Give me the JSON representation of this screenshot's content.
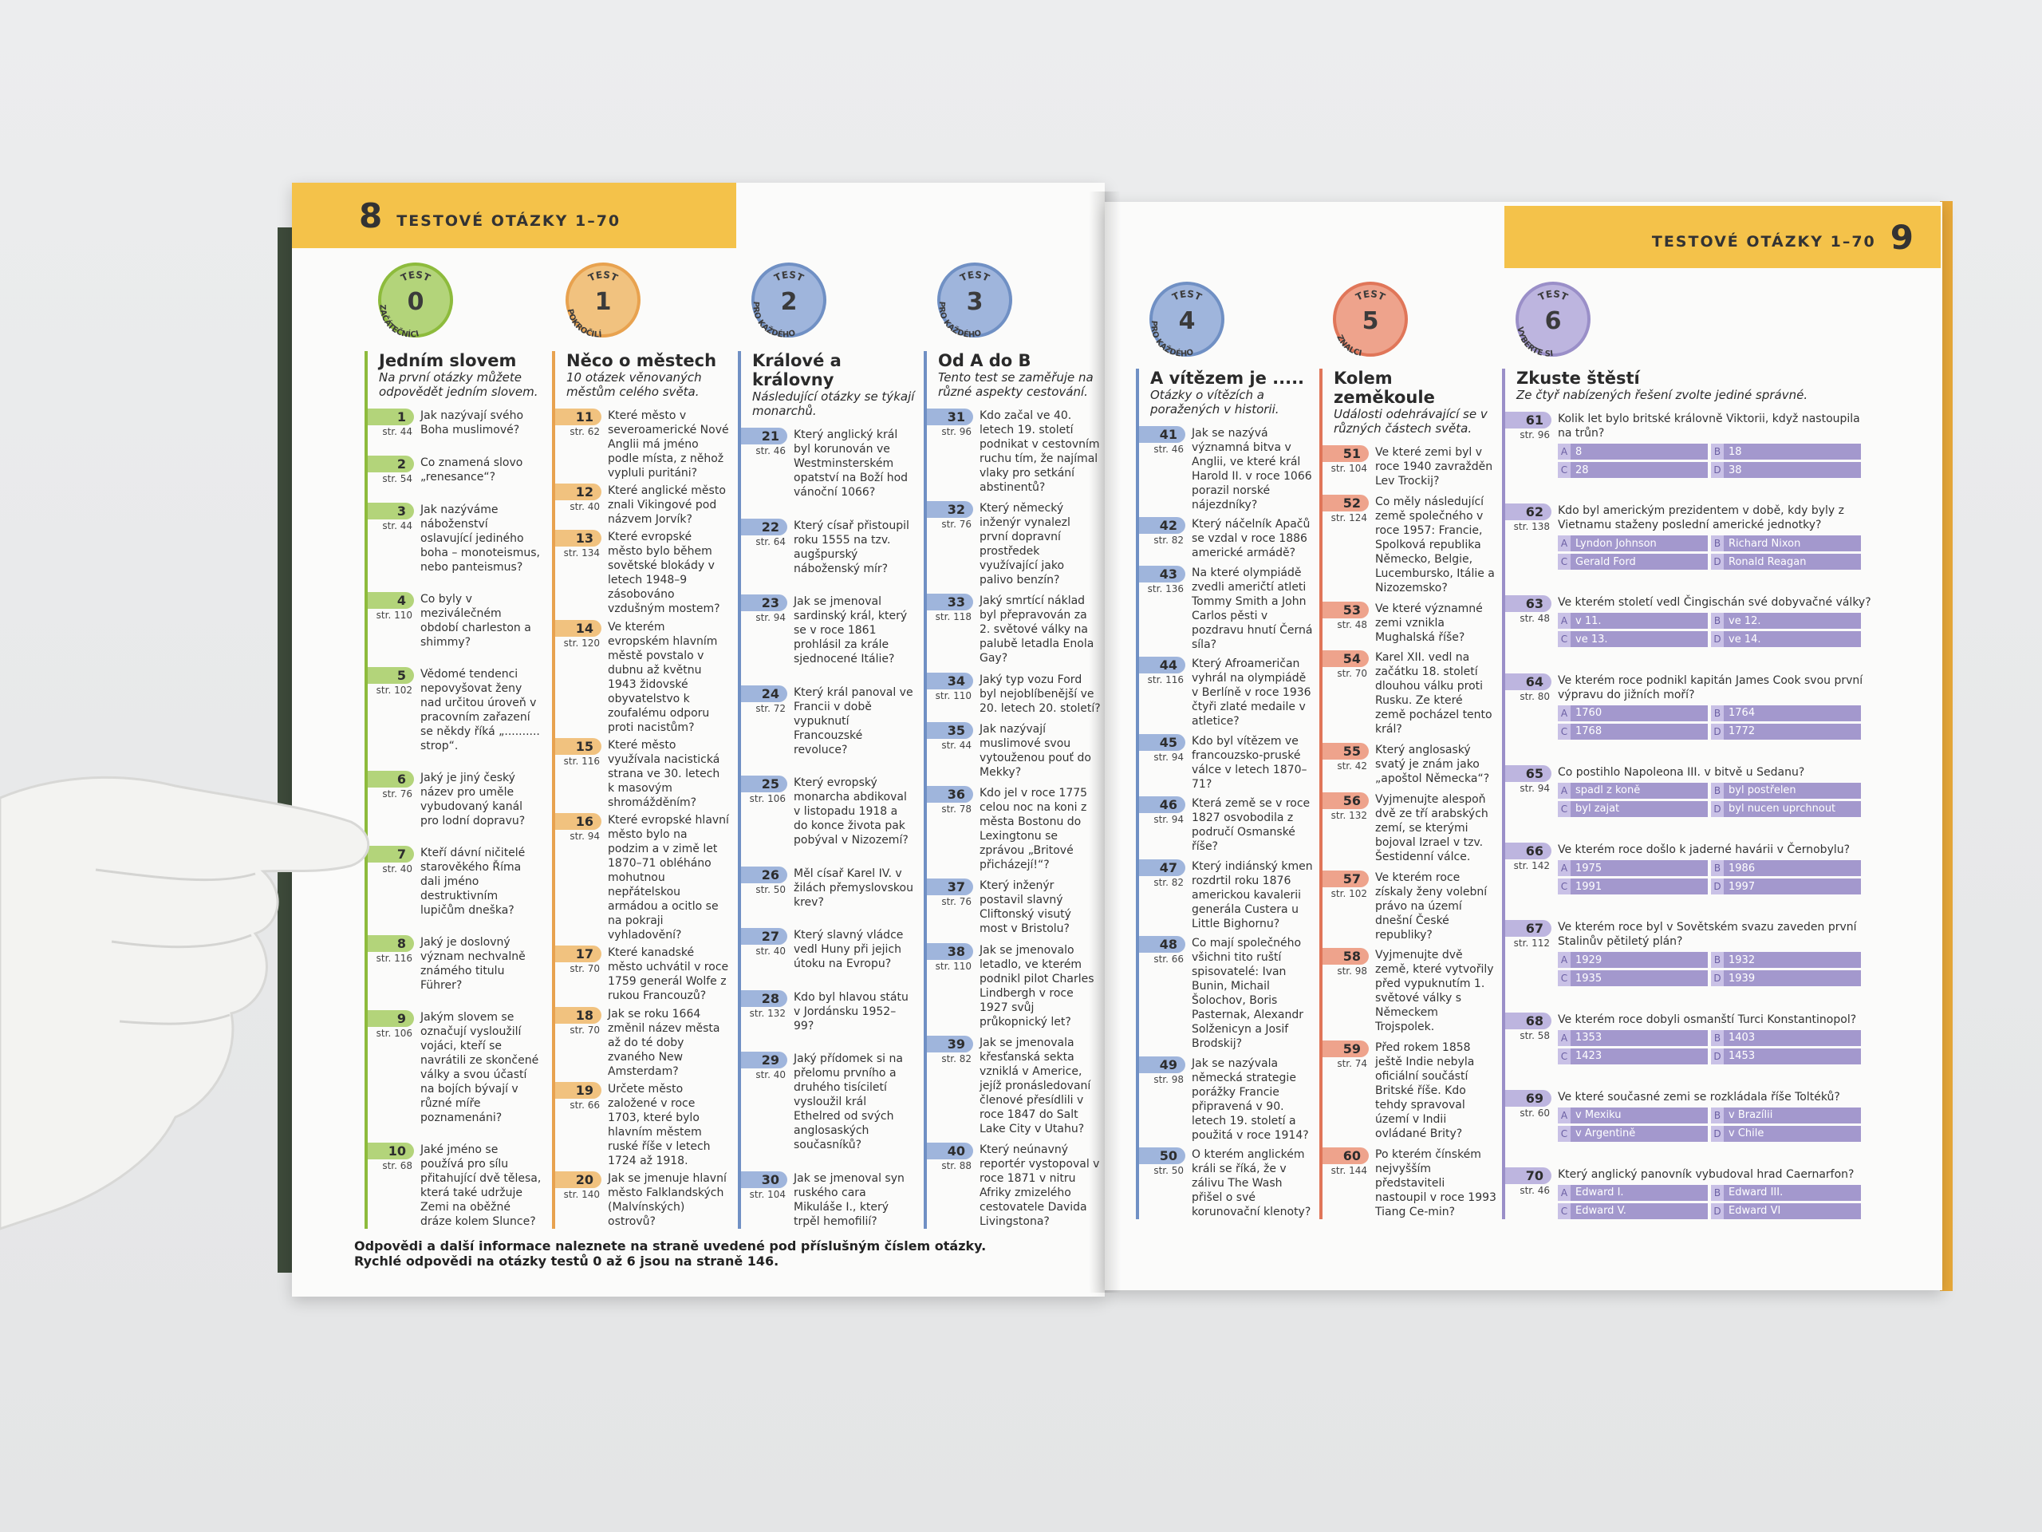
{
  "left_page": {
    "page_number": "8",
    "header": "TESTOVÉ OTÁZKY 1–70",
    "tests": [
      {
        "badge": "TEST",
        "number": "0",
        "level": "ZAČÁTEČNÍCI",
        "title": "Jedním slovem",
        "subtitle": "Na první otázky můžete odpovědět jedním slovem.",
        "questions": [
          {
            "number": "1",
            "page": "str. 44",
            "text": "Jak nazývají svého Boha muslimové?"
          },
          {
            "number": "2",
            "page": "str. 54",
            "text": "Co znamená slovo „renesance“?"
          },
          {
            "number": "3",
            "page": "str. 44",
            "text": "Jak nazýváme náboženství oslavující jediného boha – monoteismus, nebo panteismus?"
          },
          {
            "number": "4",
            "page": "str. 110",
            "text": "Co byly v meziválečném období charleston a shimmy?"
          },
          {
            "number": "5",
            "page": "str. 102",
            "text": "Vědomé tendenci nepovyšovat ženy nad určitou úroveň v pracovním zařazení se někdy říká „.......... strop“."
          },
          {
            "number": "6",
            "page": "str. 76",
            "text": "Jaký je jiný český název pro uměle vybudovaný kanál pro lodní dopravu?"
          },
          {
            "number": "7",
            "page": "str. 40",
            "text": "Kteří dávní ničitelé starověkého Říma dali jméno destruktivním lupičům dneška?"
          },
          {
            "number": "8",
            "page": "str. 116",
            "text": "Jaký je doslovný význam nechvalně známého titulu Führer?"
          },
          {
            "number": "9",
            "page": "str. 106",
            "text": "Jakým slovem se označují vysloužilí vojáci, kteří se navrátili ze skončené války a svou účastí na bojích bývají v různé míře poznamenáni?"
          },
          {
            "number": "10",
            "page": "str. 68",
            "text": "Jaké jméno se používá pro sílu přitahující dvě tělesa, která také udržuje Zemi na oběžné dráze kolem Slunce?"
          }
        ]
      },
      {
        "badge": "TEST",
        "number": "1",
        "level": "POKROČILÍ",
        "title": "Něco o městech",
        "subtitle": "10 otázek věnovaných městům celého světa.",
        "questions": [
          {
            "number": "11",
            "page": "str. 62",
            "text": "Které město v severoamerické Nové Anglii má jméno podle místa, z něhož vypluli puritáni?"
          },
          {
            "number": "12",
            "page": "str. 40",
            "text": "Které anglické město znali Vikingové pod názvem Jorvík?"
          },
          {
            "number": "13",
            "page": "str. 134",
            "text": "Které evropské město bylo během sovětské blokády v letech 1948–9 zásobováno vzdušným mostem?"
          },
          {
            "number": "14",
            "page": "str. 120",
            "text": "Ve kterém evropském hlavním městě povstalo v dubnu až květnu 1943 židovské obyvatelstvo k zoufalému odporu proti nacistům?"
          },
          {
            "number": "15",
            "page": "str. 116",
            "text": "Které město využívala nacistická strana ve 30. letech k masovým shromážděním?"
          },
          {
            "number": "16",
            "page": "str. 94",
            "text": "Které evropské hlavní město bylo na podzim a v zimě let 1870–71 obléháno mohutnou nepřátelskou armádou a ocitlo se na pokraji vyhladovění?"
          },
          {
            "number": "17",
            "page": "str. 70",
            "text": "Které kanadské město uchvátil v roce 1759 generál Wolfe z rukou Francouzů?"
          },
          {
            "number": "18",
            "page": "str. 70",
            "text": "Jak se roku 1664 změnil název města až do té doby zvaného New Amsterdam?"
          },
          {
            "number": "19",
            "page": "str. 66",
            "text": "Určete město založené v roce 1703, které bylo hlavním městem ruské říše v letech 1724 až 1918."
          },
          {
            "number": "20",
            "page": "str. 140",
            "text": "Jak se jmenuje hlavní město Falklandských (Malvínských) ostrovů?"
          }
        ]
      },
      {
        "badge": "TEST",
        "number": "2",
        "level": "PRO KAŽDÉHO",
        "title": "Králové a královny",
        "subtitle": "Následující otázky se týkají monarchů.",
        "questions": [
          {
            "number": "21",
            "page": "str. 46",
            "text": "Který anglický král byl korunován ve Westminsterském opatství na Boží hod vánoční 1066?"
          },
          {
            "number": "22",
            "page": "str. 64",
            "text": "Který císař přistoupil roku 1555 na tzv. augšpurský náboženský mír?"
          },
          {
            "number": "23",
            "page": "str. 94",
            "text": "Jak se jmenoval sardinský král, který se v roce 1861 prohlásil za krále sjednocené Itálie?"
          },
          {
            "number": "24",
            "page": "str. 72",
            "text": "Který král panoval ve Francii v době vypuknutí Francouzské revoluce?"
          },
          {
            "number": "25",
            "page": "str. 106",
            "text": "Který evropský monarcha abdikoval v listopadu 1918 a do konce života pak pobýval v Nizozemí?"
          },
          {
            "number": "26",
            "page": "str. 50",
            "text": "Měl císař Karel IV. v žilách přemyslovskou krev?"
          },
          {
            "number": "27",
            "page": "str. 40",
            "text": "Který slavný vládce vedl Huny při jejich útoku na Evropu?"
          },
          {
            "number": "28",
            "page": "str. 132",
            "text": "Kdo byl hlavou státu v Jordánsku 1952–99?"
          },
          {
            "number": "29",
            "page": "str. 40",
            "text": "Jaký přídomek si na přelomu prvního a druhého tisíciletí vysloužil král Ethelred od svých anglosaských současníků?"
          },
          {
            "number": "30",
            "page": "str. 104",
            "text": "Jak se jmenoval syn ruského cara Mikuláše I., který trpěl hemofilií?"
          }
        ]
      },
      {
        "badge": "TEST",
        "number": "3",
        "level": "PRO KAŽDÉHO",
        "title": "Od A do B",
        "subtitle": "Tento test se zaměřuje na různé aspekty cestování.",
        "questions": [
          {
            "number": "31",
            "page": "str. 96",
            "text": "Kdo začal ve 40. letech 19. století podnikat v cestovním ruchu tím, že najímal vlaky pro setkání abstinentů?"
          },
          {
            "number": "32",
            "page": "str. 76",
            "text": "Který německý inženýr vynalezl první dopravní prostředek využívající jako palivo benzín?"
          },
          {
            "number": "33",
            "page": "str. 118",
            "text": "Jaký smrtící náklad byl přepravován za 2. světové války na palubě letadla Enola Gay?"
          },
          {
            "number": "34",
            "page": "str. 110",
            "text": "Jaký typ vozu Ford byl nejoblíbenější ve 20. letech 20. století?"
          },
          {
            "number": "35",
            "page": "str. 44",
            "text": "Jak nazývají muslimové svou vytouženou pouť do Mekky?"
          },
          {
            "number": "36",
            "page": "str. 78",
            "text": "Kdo jel v roce 1775 celou noc na koni z města Bostonu do Lexingtonu se zprávou „Britové přicházejí!“?"
          },
          {
            "number": "37",
            "page": "str. 76",
            "text": "Který inženýr postavil slavný Cliftonský visutý most v Bristolu?"
          },
          {
            "number": "38",
            "page": "str. 110",
            "text": "Jak se jmenovalo letadlo, ve kterém podnikl pilot Charles Lindbergh v roce 1927 svůj průkopnický let?"
          },
          {
            "number": "39",
            "page": "str. 82",
            "text": "Jak se jmenovala křesťanská sekta vzniklá v Americe, jejíž pronásledovaní členové přesídlili v roce 1847 do Salt Lake City v Utahu?"
          },
          {
            "number": "40",
            "page": "str. 88",
            "text": "Který neúnavný reportér vystopoval v roce 1871 v nitru Afriky zmizelého cestovatele Davida Livingstona?"
          }
        ]
      }
    ],
    "footer": [
      "Odpovědi a další informace naleznete na straně uvedené pod příslušným číslem otázky.",
      "Rychlé odpovědi na otázky testů 0 až 6 jsou na straně 146."
    ]
  },
  "right_page": {
    "header": "TESTOVÉ OTÁZKY 1–70",
    "page_number": "9",
    "tests": [
      {
        "badge": "TEST",
        "number": "4",
        "level": "PRO KAŽDÉHO",
        "title": "A vítězem je .....",
        "subtitle": "Otázky o vítězích a poražených v historii.",
        "questions": [
          {
            "number": "41",
            "page": "str. 46",
            "text": "Jak se nazývá významná bitva v Anglii, ve které král Harold II. v roce 1066 porazil norské nájezdníky?"
          },
          {
            "number": "42",
            "page": "str. 82",
            "text": "Který náčelník Apačů se vzdal v roce 1886 americké armádě?"
          },
          {
            "number": "43",
            "page": "str. 136",
            "text": "Na které olympiádě zvedli američtí atleti Tommy Smith a John Carlos pěsti v pozdravu hnutí Černá síla?"
          },
          {
            "number": "44",
            "page": "str. 116",
            "text": "Který Afroameričan vyhrál na olympiádě v Berlíně v roce 1936 čtyři zlaté medaile v atletice?"
          },
          {
            "number": "45",
            "page": "str. 94",
            "text": "Kdo byl vítězem ve francouzsko-pruské válce v letech 1870–71?"
          },
          {
            "number": "46",
            "page": "str. 94",
            "text": "Která země se v roce 1827 osvobodila z područí Osmanské říše?"
          },
          {
            "number": "47",
            "page": "str. 82",
            "text": "Který indiánský kmen rozdrtil roku 1876 americkou kavalerii generála Custera u Little Bighornu?"
          },
          {
            "number": "48",
            "page": "str. 66",
            "text": "Co mají společného všichni tito ruští spisovatelé: Ivan Bunin, Michail Šolochov, Boris Pasternak, Alexandr Solženicyn a Josif Brodskij?"
          },
          {
            "number": "49",
            "page": "str. 98",
            "text": "Jak se nazývala německá strategie porážky Francie připravená v 90. letech 19. století a použitá v roce 1914?"
          },
          {
            "number": "50",
            "page": "str. 50",
            "text": "O kterém anglickém králi se říká, že v zálivu The Wash přišel o své korunovační klenoty?"
          }
        ]
      },
      {
        "badge": "TEST",
        "number": "5",
        "level": "ZNALCI",
        "title": "Kolem zeměkoule",
        "subtitle": "Události odehrávající se v různých částech světa.",
        "questions": [
          {
            "number": "51",
            "page": "str. 104",
            "text": "Ve které zemi byl v roce 1940 zavražděn Lev Trockij?"
          },
          {
            "number": "52",
            "page": "str. 124",
            "text": "Co měly následující země společného v roce 1957: Francie, Spolková republika Německo, Belgie, Lucembursko, Itálie a Nizozemsko?"
          },
          {
            "number": "53",
            "page": "str. 48",
            "text": "Ve které významné zemi vznikla Mughalská říše?"
          },
          {
            "number": "54",
            "page": "str. 70",
            "text": "Karel XII. vedl na začátku 18. století dlouhou válku proti Rusku. Ze které země pocházel tento král?"
          },
          {
            "number": "55",
            "page": "str. 42",
            "text": "Který anglosaský svatý je znám jako „apoštol Německa“?"
          },
          {
            "number": "56",
            "page": "str. 132",
            "text": "Vyjmenujte alespoň dvě ze tří arabských zemí, se kterými bojoval Izrael v tzv. Šestidenní válce."
          },
          {
            "number": "57",
            "page": "str. 102",
            "text": "Ve kterém roce získaly ženy volební právo na území dnešní České republiky?"
          },
          {
            "number": "58",
            "page": "str. 98",
            "text": "Vyjmenujte dvě země, které vytvořily před vypuknutím 1. světové války s Německem Trojspolek."
          },
          {
            "number": "59",
            "page": "str. 74",
            "text": "Před rokem 1858 ještě Indie nebyla oficiální součástí Britské říše. Kdo tehdy spravoval území v Indii ovládané Brity?"
          },
          {
            "number": "60",
            "page": "str. 144",
            "text": "Po kterém čínském nejvyšším představiteli nastoupil v roce 1993 Tiang Ce-min?"
          }
        ]
      },
      {
        "badge": "TEST",
        "number": "6",
        "level": "VYBERTE SI",
        "title": "Zkuste štěstí",
        "subtitle": "Ze čtyř nabízených řešení zvolte jediné správné.",
        "questions": [
          {
            "number": "61",
            "page": "str. 96",
            "text": "Kolik let bylo britské královně Viktorii, když nastoupila na trůn?",
            "options": [
              {
                "letter": "A",
                "text": "8"
              },
              {
                "letter": "B",
                "text": "18"
              },
              {
                "letter": "C",
                "text": "28"
              },
              {
                "letter": "D",
                "text": "38"
              }
            ]
          },
          {
            "number": "62",
            "page": "str. 138",
            "text": "Kdo byl americkým prezidentem v době, kdy byly z Vietnamu staženy poslední americké jednotky?",
            "options": [
              {
                "letter": "A",
                "text": "Lyndon Johnson"
              },
              {
                "letter": "B",
                "text": "Richard Nixon"
              },
              {
                "letter": "C",
                "text": "Gerald Ford"
              },
              {
                "letter": "D",
                "text": "Ronald Reagan"
              }
            ]
          },
          {
            "number": "63",
            "page": "str. 48",
            "text": "Ve kterém století vedl Čingischán své dobyvačné války?",
            "options": [
              {
                "letter": "A",
                "text": "v 11."
              },
              {
                "letter": "B",
                "text": "ve 12."
              },
              {
                "letter": "C",
                "text": "ve 13."
              },
              {
                "letter": "D",
                "text": "ve 14."
              }
            ]
          },
          {
            "number": "64",
            "page": "str. 80",
            "text": "Ve kterém roce podnikl kapitán James Cook svou první výpravu do jižních moří?",
            "options": [
              {
                "letter": "A",
                "text": "1760"
              },
              {
                "letter": "B",
                "text": "1764"
              },
              {
                "letter": "C",
                "text": "1768"
              },
              {
                "letter": "D",
                "text": "1772"
              }
            ]
          },
          {
            "number": "65",
            "page": "str. 94",
            "text": "Co postihlo Napoleona III. v bitvě u Sedanu?",
            "options": [
              {
                "letter": "A",
                "text": "spadl z koně"
              },
              {
                "letter": "B",
                "text": "byl postřelen"
              },
              {
                "letter": "C",
                "text": "byl zajat"
              },
              {
                "letter": "D",
                "text": "byl nucen uprchnout"
              }
            ]
          },
          {
            "number": "66",
            "page": "str. 142",
            "text": "Ve kterém roce došlo k jaderné havárii v Černobylu?",
            "options": [
              {
                "letter": "A",
                "text": "1975"
              },
              {
                "letter": "B",
                "text": "1986"
              },
              {
                "letter": "C",
                "text": "1991"
              },
              {
                "letter": "D",
                "text": "1997"
              }
            ]
          },
          {
            "number": "67",
            "page": "str. 112",
            "text": "Ve kterém roce byl v Sovětském svazu zaveden první Stalinův pětiletý plán?",
            "options": [
              {
                "letter": "A",
                "text": "1929"
              },
              {
                "letter": "B",
                "text": "1932"
              },
              {
                "letter": "C",
                "text": "1935"
              },
              {
                "letter": "D",
                "text": "1939"
              }
            ]
          },
          {
            "number": "68",
            "page": "str. 58",
            "text": "Ve kterém roce dobyli osmanští Turci Konstantinopol?",
            "options": [
              {
                "letter": "A",
                "text": "1353"
              },
              {
                "letter": "B",
                "text": "1403"
              },
              {
                "letter": "C",
                "text": "1423"
              },
              {
                "letter": "D",
                "text": "1453"
              }
            ]
          },
          {
            "number": "69",
            "page": "str. 60",
            "text": "Ve které současné zemi se rozkládala říše Toltéků?",
            "options": [
              {
                "letter": "A",
                "text": "v Mexiku"
              },
              {
                "letter": "B",
                "text": "v Brazílii"
              },
              {
                "letter": "C",
                "text": "v Argentině"
              },
              {
                "letter": "D",
                "text": "v Chile"
              }
            ]
          },
          {
            "number": "70",
            "page": "str. 46",
            "text": "Který anglický panovník vybudoval hrad Caernarfon?",
            "options": [
              {
                "letter": "A",
                "text": "Edward I."
              },
              {
                "letter": "B",
                "text": "Edward III."
              },
              {
                "letter": "C",
                "text": "Edward V."
              },
              {
                "letter": "D",
                "text": "Edward VI"
              }
            ]
          }
        ]
      }
    ]
  }
}
